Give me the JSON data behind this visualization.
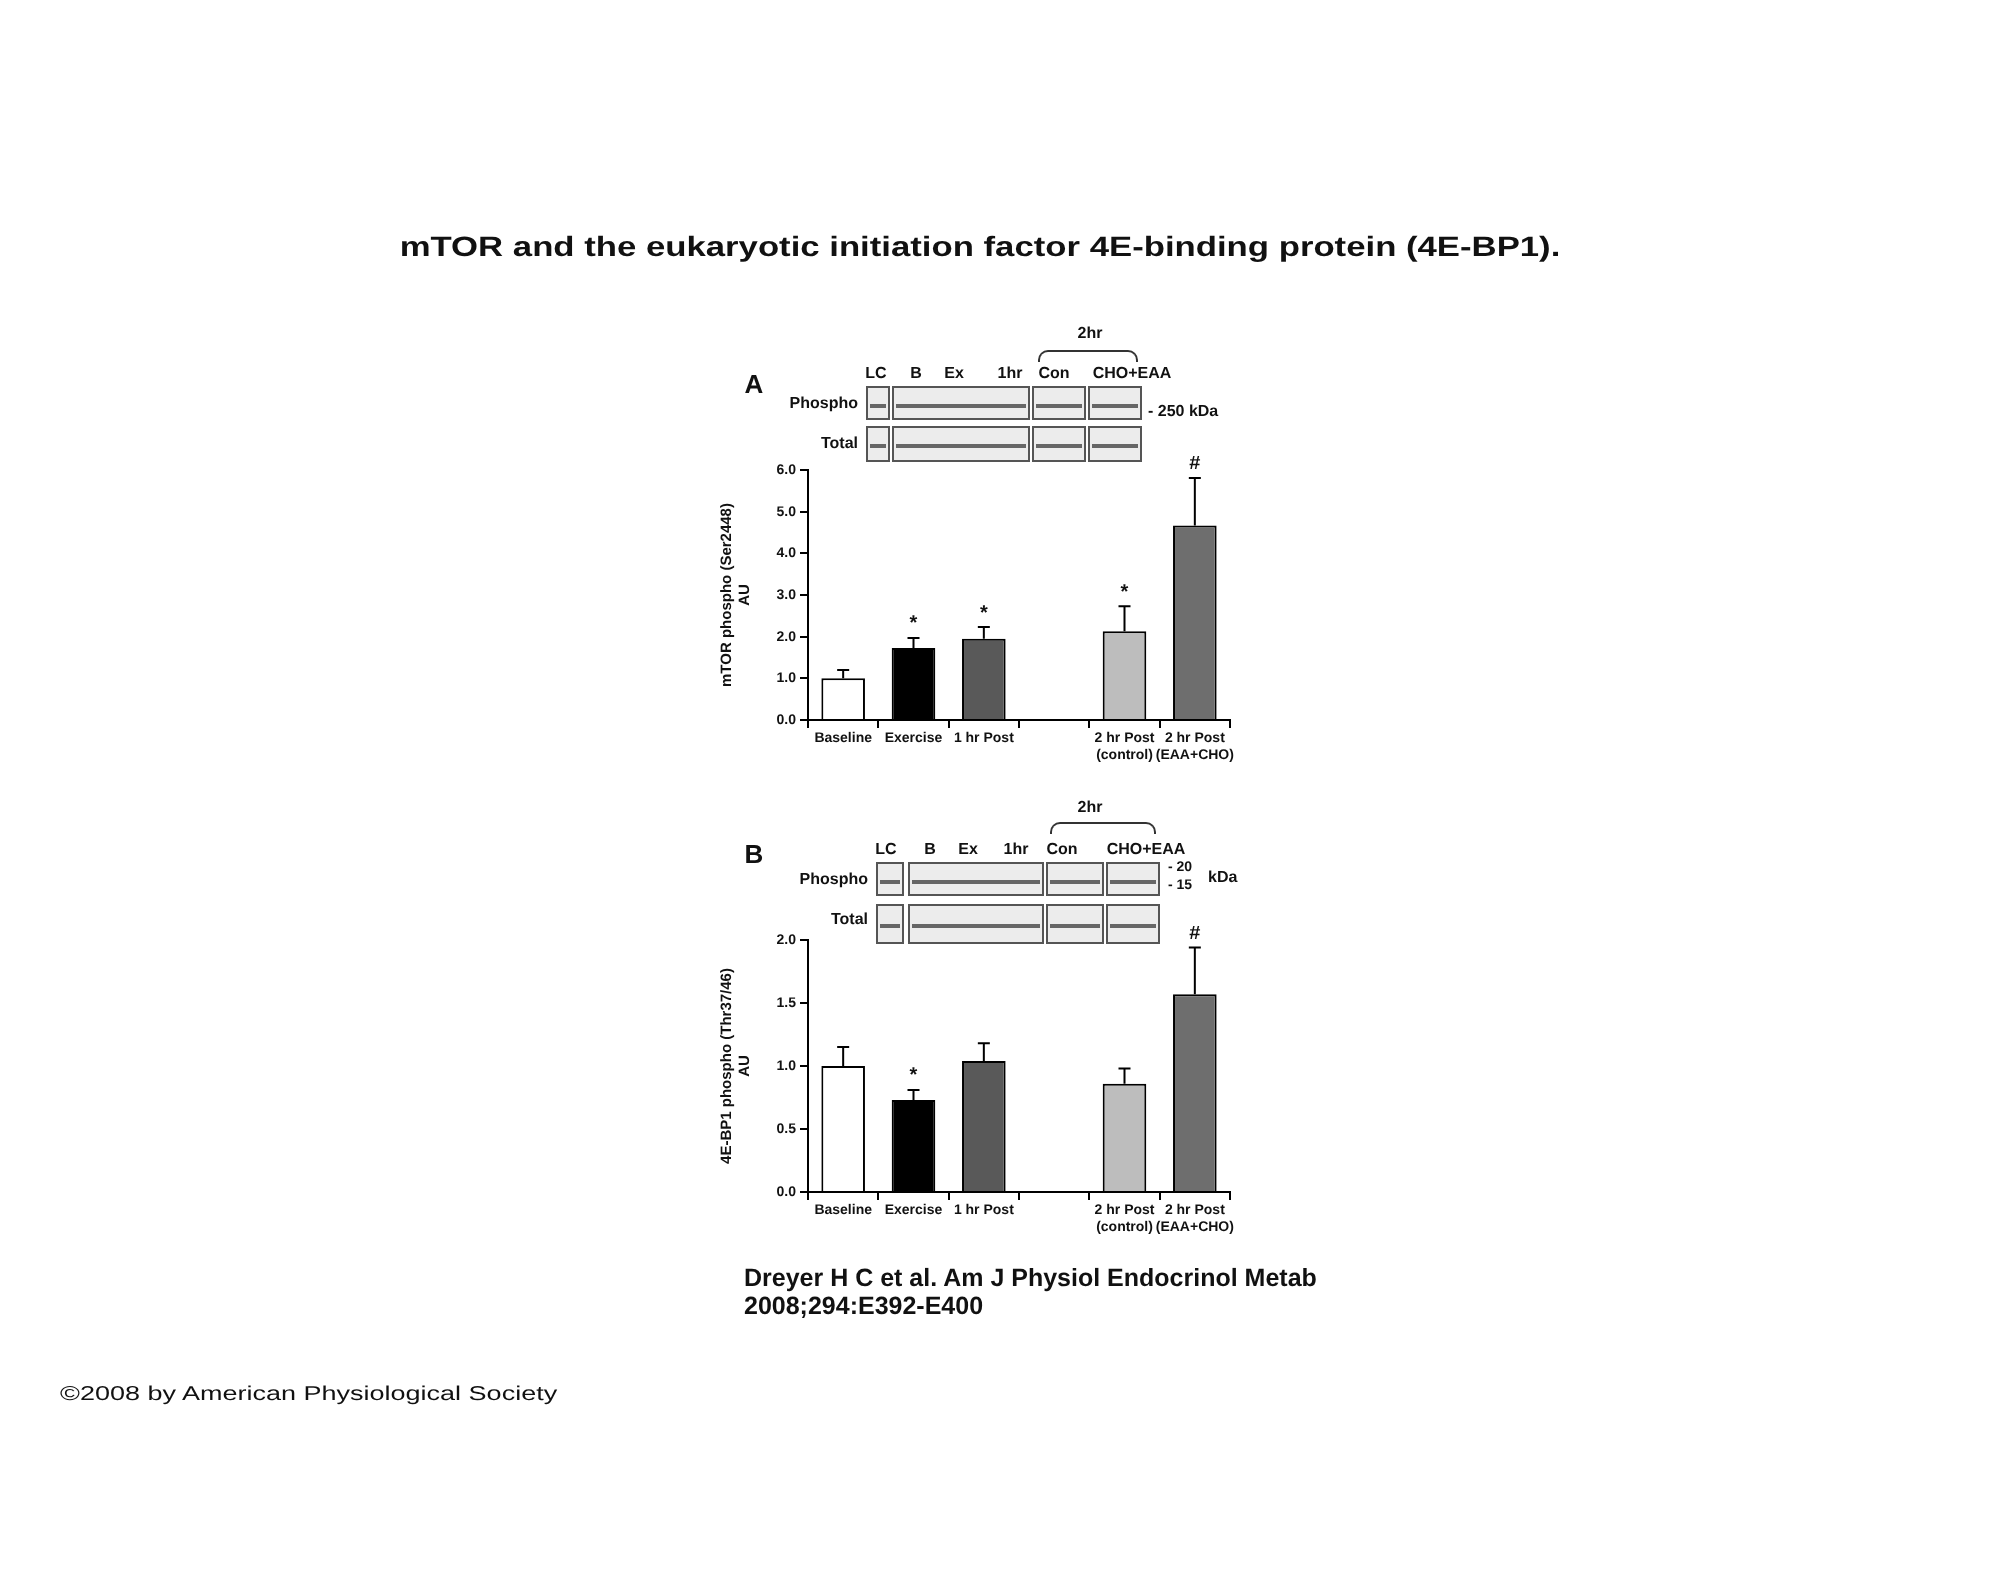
{
  "chart_data": [
    {
      "type": "bar",
      "title": "mTOR and the eukaryotic initiation factor 4E-binding protein (4E-BP1).",
      "categories": [
        "Baseline",
        "Exercise",
        "1 hr Post",
        null,
        "2 hr Post\n(control)",
        "2 hr Post\n(EAA+CHO)"
      ],
      "values": [
        1.0,
        1.73,
        1.95,
        null,
        2.13,
        4.67
      ],
      "errors": [
        0.2,
        0.24,
        0.28,
        null,
        0.6,
        1.14
      ],
      "colors": [
        "#ffffff",
        "#000000",
        "#595959",
        null,
        "#bdbdbd",
        "#6e6e6e"
      ],
      "ylim": [
        0,
        6
      ],
      "yticks": [
        {
          "value": 0,
          "label": "0.0"
        },
        {
          "value": 1,
          "label": "1.0"
        },
        {
          "value": 2,
          "label": "2.0"
        },
        {
          "value": 3,
          "label": "3.0"
        },
        {
          "value": 4,
          "label": "4.0"
        },
        {
          "value": 5,
          "label": "5.0"
        },
        {
          "value": 6,
          "label": "6.0"
        }
      ],
      "ylabel": "mTOR phospho (Ser2448)\nAU",
      "annotations": [
        "A",
        "LC",
        "B",
        "Ex",
        "1hr",
        "Con",
        "CHO+EAA",
        "2hr",
        "Phospho",
        "Total",
        "- 250 kDa",
        {
          "text": "*",
          "x": "Exercise",
          "y": 1.97
        },
        {
          "text": "*",
          "x": "1 hr Post",
          "y": 2.23
        },
        {
          "text": "*",
          "x": "2 hr Post\n(control)",
          "y": 2.73
        },
        {
          "text": "#",
          "x": "2 hr Post\n(EAA+CHO)",
          "y": 5.81
        }
      ]
    },
    {
      "type": "bar",
      "categories": [
        "Baseline",
        "Exercise",
        "1 hr Post",
        null,
        "2 hr Post\n(control)",
        "2 hr Post\n(EAA+CHO)"
      ],
      "values": [
        1.0,
        0.73,
        1.04,
        null,
        0.86,
        1.57
      ],
      "errors": [
        0.15,
        0.08,
        0.14,
        null,
        0.12,
        0.37
      ],
      "colors": [
        "#ffffff",
        "#000000",
        "#595959",
        null,
        "#bdbdbd",
        "#6e6e6e"
      ],
      "ylim": [
        0,
        2
      ],
      "yticks": [
        {
          "value": 0,
          "label": "0.0"
        },
        0.5,
        {
          "value": 1,
          "label": "1.0"
        },
        1.5,
        {
          "value": 2,
          "label": "2.0"
        }
      ],
      "ylabel": "4E-BP1 phospho (Thr37/46)\nAU",
      "annotations": [
        "B",
        "LC",
        "B",
        "Ex",
        "1hr",
        "Con",
        "CHO+EAA",
        "2hr",
        "Phospho",
        "Total",
        "- 20",
        "- 15",
        "kDa",
        "Dreyer H C et al. Am J Physiol Endocrinol Metab 2008;294:E392-E400",
        "©2008 by American Physiological Society",
        {
          "text": "*",
          "x": "Exercise",
          "y": 0.81
        },
        {
          "text": "#",
          "x": "2 hr Post\n(EAA+CHO)",
          "y": 1.94
        }
      ]
    }
  ]
}
